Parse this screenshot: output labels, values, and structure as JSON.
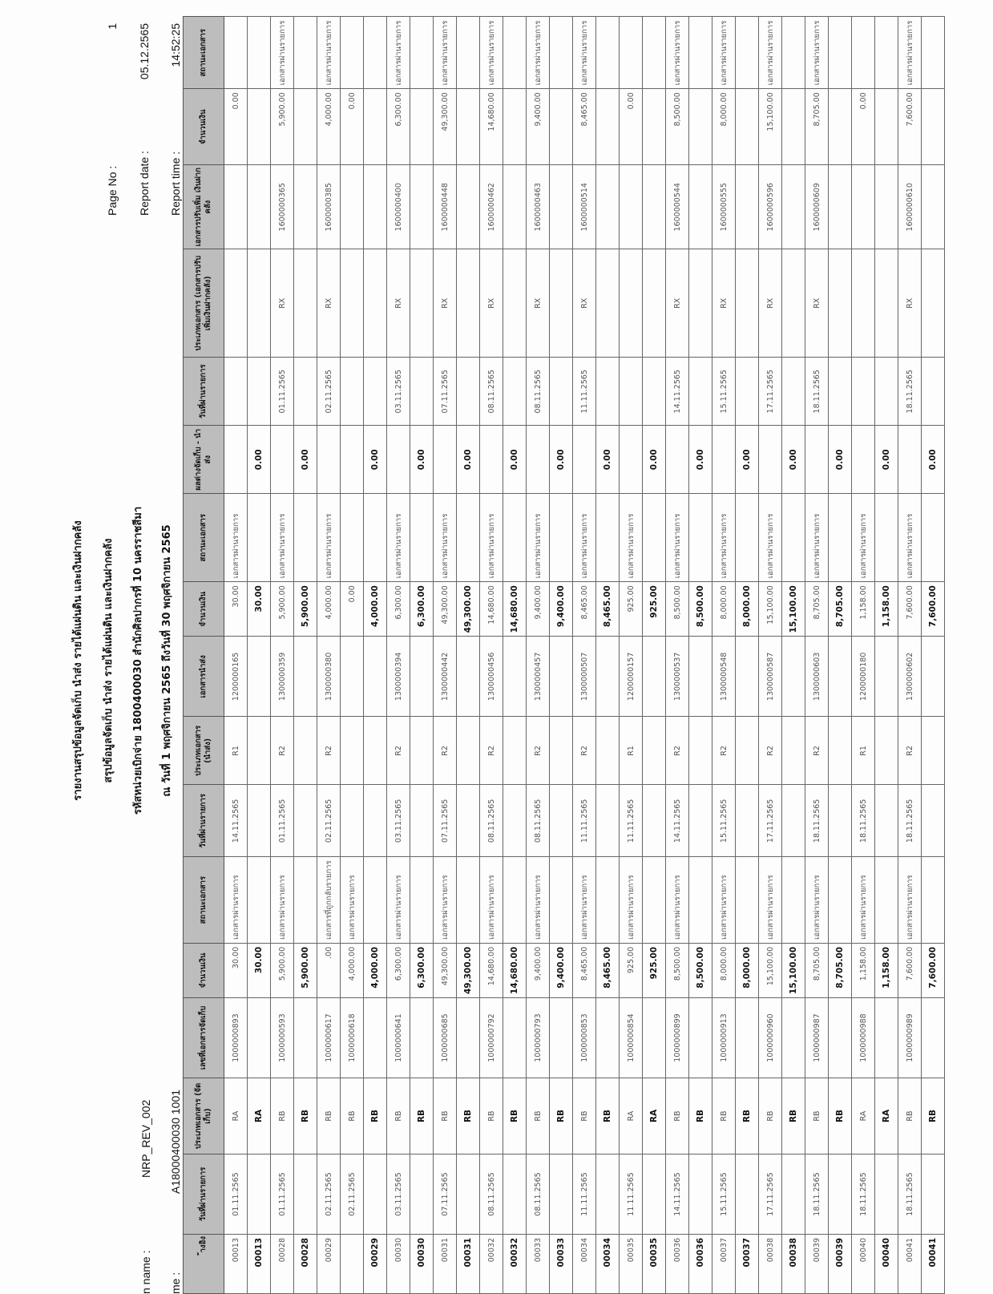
{
  "header": {
    "title_lines": [
      "รายงานสรุปข้อมูลจัดเก็บ นำส่ง รายได้แผ่นดิน และเงินฝากคลัง",
      "สรุปข้อมูลจัดเก็บ นำส่ง รายได้แผ่นดิน และเงินฝากคลัง",
      "รหัสหน่วยเบิกจ่าย 1800400030 สำนักศิลปากรที่ 10 นครราชสีมา",
      "ณ วันที่ 1 พฤศจิกายน 2565 ถึงวันที่  30 พฤศจิกายน 2565"
    ],
    "program_label": "n name :",
    "program_value": "NRP_REV_002",
    "user_label": "me :",
    "user_value": "A18000400030 1001",
    "page_no_label": "Page No :",
    "page_no_value": "1",
    "report_date_label": "Report date :",
    "report_date_value": "05.12.2565",
    "report_time_label": "Report time :",
    "report_time_value": "14:52:25"
  },
  "table": {
    "header_bg": "#bdbdbd",
    "columns": [
      "้างอิง",
      "วันที่ผ่านรายการ",
      "ประเภทเอกสาร (จัดเก็บ)",
      "เลขที่เอกสารจัดเก็บ",
      "จำนวนเงิน",
      "สถานะเอกสาร",
      "วันที่ผ่านรายการ",
      "ประเภทเอกสาร (นำส่ง)",
      "เอกสารนำส่ง",
      "จำนวนเงิน",
      "สถานะเอกสาร",
      "ผลต่างจัดเก็บ - นำส่ง",
      "วันที่ผ่านรายการ",
      "ประเภทเอกสาร (เอกสารปรับเพิ่มเงินฝากคลัง)",
      "เอกสารปรับเพิ่ม เงินฝากคลัง",
      "จำนวนเงิน",
      "สถานะเอกสาร"
    ],
    "rows": [
      {
        "subtotal": false,
        "cells": [
          "00013",
          "01.11.2565",
          "RA",
          "1000000893",
          "30.00",
          "เอกสารผ่านรายการ",
          "14.11.2565",
          "R1",
          "1200000165",
          "30.00",
          "เอกสารผ่านรายการ",
          "",
          "",
          "",
          "",
          "0.00",
          ""
        ]
      },
      {
        "subtotal": true,
        "cells": [
          "00013",
          "",
          "RA",
          "",
          "30.00",
          "",
          "",
          "",
          "",
          "30.00",
          "",
          "0.00",
          "",
          "",
          "",
          "",
          ""
        ]
      },
      {
        "subtotal": false,
        "cells": [
          "00028",
          "01.11.2565",
          "RB",
          "1000000593",
          "5,900.00",
          "เอกสารผ่านรายการ",
          "01.11.2565",
          "R2",
          "1300000359",
          "5,900.00",
          "เอกสารผ่านรายการ",
          "",
          "01.11.2565",
          "RX",
          "1600000365",
          "5,900.00",
          "เอกสารผ่านรายการ"
        ]
      },
      {
        "subtotal": true,
        "cells": [
          "00028",
          "",
          "RB",
          "",
          "5,900.00",
          "",
          "",
          "",
          "",
          "5,900.00",
          "",
          "0.00",
          "",
          "",
          "",
          "",
          ""
        ]
      },
      {
        "subtotal": false,
        "cells": [
          "00029",
          "02.11.2565",
          "RB",
          "1000000617",
          ".00",
          "เอกสารที่ถูกกลับรายการ",
          "02.11.2565",
          "R2",
          "1300000380",
          "4,000.00",
          "เอกสารผ่านรายการ",
          "",
          "02.11.2565",
          "RX",
          "1600000385",
          "4,000.00",
          "เอกสารผ่านรายการ"
        ]
      },
      {
        "subtotal": false,
        "cells": [
          "",
          "02.11.2565",
          "RB",
          "1000000618",
          "4,000.00",
          "เอกสารผ่านรายการ",
          "",
          "",
          "",
          "0.00",
          "",
          "",
          "",
          "",
          "",
          "0.00",
          ""
        ]
      },
      {
        "subtotal": true,
        "cells": [
          "00029",
          "",
          "RB",
          "",
          "4,000.00",
          "",
          "",
          "",
          "",
          "4,000.00",
          "",
          "0.00",
          "",
          "",
          "",
          "",
          ""
        ]
      },
      {
        "subtotal": false,
        "cells": [
          "00030",
          "03.11.2565",
          "RB",
          "1000000641",
          "6,300.00",
          "เอกสารผ่านรายการ",
          "03.11.2565",
          "R2",
          "1300000394",
          "6,300.00",
          "เอกสารผ่านรายการ",
          "",
          "03.11.2565",
          "RX",
          "1600000400",
          "6,300.00",
          "เอกสารผ่านรายการ"
        ]
      },
      {
        "subtotal": true,
        "cells": [
          "00030",
          "",
          "RB",
          "",
          "6,300.00",
          "",
          "",
          "",
          "",
          "6,300.00",
          "",
          "0.00",
          "",
          "",
          "",
          "",
          ""
        ]
      },
      {
        "subtotal": false,
        "cells": [
          "00031",
          "07.11.2565",
          "RB",
          "1000000685",
          "49,300.00",
          "เอกสารผ่านรายการ",
          "07.11.2565",
          "R2",
          "1300000442",
          "49,300.00",
          "เอกสารผ่านรายการ",
          "",
          "07.11.2565",
          "RX",
          "1600000448",
          "49,300.00",
          "เอกสารผ่านรายการ"
        ]
      },
      {
        "subtotal": true,
        "cells": [
          "00031",
          "",
          "RB",
          "",
          "49,300.00",
          "",
          "",
          "",
          "",
          "49,300.00",
          "",
          "0.00",
          "",
          "",
          "",
          "",
          ""
        ]
      },
      {
        "subtotal": false,
        "cells": [
          "00032",
          "08.11.2565",
          "RB",
          "1000000792",
          "14,680.00",
          "เอกสารผ่านรายการ",
          "08.11.2565",
          "R2",
          "1300000456",
          "14,680.00",
          "เอกสารผ่านรายการ",
          "",
          "08.11.2565",
          "RX",
          "1600000462",
          "14,680.00",
          "เอกสารผ่านรายการ"
        ]
      },
      {
        "subtotal": true,
        "cells": [
          "00032",
          "",
          "RB",
          "",
          "14,680.00",
          "",
          "",
          "",
          "",
          "14,680.00",
          "",
          "0.00",
          "",
          "",
          "",
          "",
          ""
        ]
      },
      {
        "subtotal": false,
        "cells": [
          "00033",
          "08.11.2565",
          "RB",
          "1000000793",
          "9,400.00",
          "เอกสารผ่านรายการ",
          "08.11.2565",
          "R2",
          "1300000457",
          "9,400.00",
          "เอกสารผ่านรายการ",
          "",
          "08.11.2565",
          "RX",
          "1600000463",
          "9,400.00",
          "เอกสารผ่านรายการ"
        ]
      },
      {
        "subtotal": true,
        "cells": [
          "00033",
          "",
          "RB",
          "",
          "9,400.00",
          "",
          "",
          "",
          "",
          "9,400.00",
          "",
          "0.00",
          "",
          "",
          "",
          "",
          ""
        ]
      },
      {
        "subtotal": false,
        "cells": [
          "00034",
          "11.11.2565",
          "RB",
          "1000000853",
          "8,465.00",
          "เอกสารผ่านรายการ",
          "11.11.2565",
          "R2",
          "1300000507",
          "8,465.00",
          "เอกสารผ่านรายการ",
          "",
          "11.11.2565",
          "RX",
          "1600000514",
          "8,465.00",
          "เอกสารผ่านรายการ"
        ]
      },
      {
        "subtotal": true,
        "cells": [
          "00034",
          "",
          "RB",
          "",
          "8,465.00",
          "",
          "",
          "",
          "",
          "8,465.00",
          "",
          "0.00",
          "",
          "",
          "",
          "",
          ""
        ]
      },
      {
        "subtotal": false,
        "cells": [
          "00035",
          "11.11.2565",
          "RA",
          "1000000854",
          "925.00",
          "เอกสารผ่านรายการ",
          "11.11.2565",
          "R1",
          "1200000157",
          "925.00",
          "เอกสารผ่านรายการ",
          "",
          "",
          "",
          "",
          "0.00",
          ""
        ]
      },
      {
        "subtotal": true,
        "cells": [
          "00035",
          "",
          "RA",
          "",
          "925.00",
          "",
          "",
          "",
          "",
          "925.00",
          "",
          "0.00",
          "",
          "",
          "",
          "",
          ""
        ]
      },
      {
        "subtotal": false,
        "cells": [
          "00036",
          "14.11.2565",
          "RB",
          "1000000899",
          "8,500.00",
          "เอกสารผ่านรายการ",
          "14.11.2565",
          "R2",
          "1300000537",
          "8,500.00",
          "เอกสารผ่านรายการ",
          "",
          "14.11.2565",
          "RX",
          "1600000544",
          "8,500.00",
          "เอกสารผ่านรายการ"
        ]
      },
      {
        "subtotal": true,
        "cells": [
          "00036",
          "",
          "RB",
          "",
          "8,500.00",
          "",
          "",
          "",
          "",
          "8,500.00",
          "",
          "0.00",
          "",
          "",
          "",
          "",
          ""
        ]
      },
      {
        "subtotal": false,
        "cells": [
          "00037",
          "15.11.2565",
          "RB",
          "1000000913",
          "8,000.00",
          "เอกสารผ่านรายการ",
          "15.11.2565",
          "R2",
          "1300000548",
          "8,000.00",
          "เอกสารผ่านรายการ",
          "",
          "15.11.2565",
          "RX",
          "1600000555",
          "8,000.00",
          "เอกสารผ่านรายการ"
        ]
      },
      {
        "subtotal": true,
        "cells": [
          "00037",
          "",
          "RB",
          "",
          "8,000.00",
          "",
          "",
          "",
          "",
          "8,000.00",
          "",
          "0.00",
          "",
          "",
          "",
          "",
          ""
        ]
      },
      {
        "subtotal": false,
        "cells": [
          "00038",
          "17.11.2565",
          "RB",
          "1000000960",
          "15,100.00",
          "เอกสารผ่านรายการ",
          "17.11.2565",
          "R2",
          "1300000587",
          "15,100.00",
          "เอกสารผ่านรายการ",
          "",
          "17.11.2565",
          "RX",
          "1600000596",
          "15,100.00",
          "เอกสารผ่านรายการ"
        ]
      },
      {
        "subtotal": true,
        "cells": [
          "00038",
          "",
          "RB",
          "",
          "15,100.00",
          "",
          "",
          "",
          "",
          "15,100.00",
          "",
          "0.00",
          "",
          "",
          "",
          "",
          ""
        ]
      },
      {
        "subtotal": false,
        "cells": [
          "00039",
          "18.11.2565",
          "RB",
          "1000000987",
          "8,705.00",
          "เอกสารผ่านรายการ",
          "18.11.2565",
          "R2",
          "1300000603",
          "8,705.00",
          "เอกสารผ่านรายการ",
          "",
          "18.11.2565",
          "RX",
          "1600000609",
          "8,705.00",
          "เอกสารผ่านรายการ"
        ]
      },
      {
        "subtotal": true,
        "cells": [
          "00039",
          "",
          "RB",
          "",
          "8,705.00",
          "",
          "",
          "",
          "",
          "8,705.00",
          "",
          "0.00",
          "",
          "",
          "",
          "",
          ""
        ]
      },
      {
        "subtotal": false,
        "cells": [
          "00040",
          "18.11.2565",
          "RA",
          "1000000988",
          "1,158.00",
          "เอกสารผ่านรายการ",
          "18.11.2565",
          "R1",
          "1200000180",
          "1,158.00",
          "เอกสารผ่านรายการ",
          "",
          "",
          "",
          "",
          "0.00",
          ""
        ]
      },
      {
        "subtotal": true,
        "cells": [
          "00040",
          "",
          "RA",
          "",
          "1,158.00",
          "",
          "",
          "",
          "",
          "1,158.00",
          "",
          "0.00",
          "",
          "",
          "",
          "",
          ""
        ]
      },
      {
        "subtotal": false,
        "cells": [
          "00041",
          "18.11.2565",
          "RB",
          "1000000989",
          "7,600.00",
          "เอกสารผ่านรายการ",
          "18.11.2565",
          "R2",
          "1300000602",
          "7,600.00",
          "เอกสารผ่านรายการ",
          "",
          "18.11.2565",
          "RX",
          "1600000610",
          "7,600.00",
          "เอกสารผ่านรายการ"
        ]
      },
      {
        "subtotal": true,
        "cells": [
          "00041",
          "",
          "RB",
          "",
          "7,600.00",
          "",
          "",
          "",
          "",
          "7,600.00",
          "",
          "0.00",
          "",
          "",
          "",
          "",
          ""
        ]
      }
    ]
  }
}
